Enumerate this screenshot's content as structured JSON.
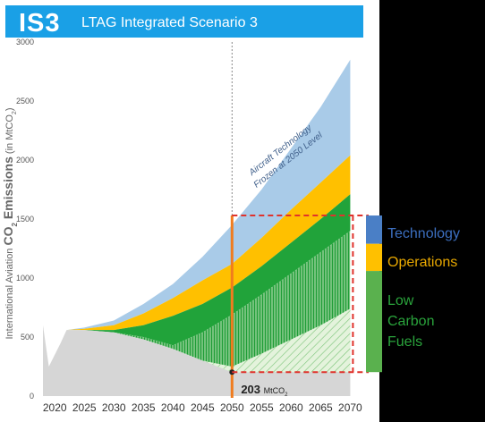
{
  "header": {
    "code": "IS3",
    "title": "LTAG Integrated Scenario 3"
  },
  "colors": {
    "baseline": "#a9cbe8",
    "technology": "#4a7fc6",
    "operations": "#ffc000",
    "fuels": "#21a33a",
    "residual": "#d6d6d6",
    "marker_line": "#f07c1e",
    "dashed": "#e0322c",
    "title_bar": "#1aa0e6"
  },
  "chart_data": {
    "type": "area",
    "title": "LTAG Integrated Scenario 3",
    "ylabel": "International Aviation CO2 Emissions (in MtCO2)",
    "ylabel_parts": {
      "pre": "International Aviation ",
      "bold": "CO",
      "sub": "2",
      "bold2": " Emissions",
      "post": " (in MtCO",
      "sub2": "2",
      "post2": ")"
    },
    "xlabel": "",
    "x": [
      2018,
      2019,
      2020,
      2021,
      2022,
      2025,
      2030,
      2035,
      2040,
      2045,
      2050,
      2055,
      2060,
      2065,
      2070
    ],
    "xticks": [
      2020,
      2025,
      2030,
      2035,
      2040,
      2045,
      2050,
      2055,
      2060,
      2065,
      2070
    ],
    "ylim": [
      0,
      3000
    ],
    "yticks": [
      0,
      500,
      1000,
      1500,
      2000,
      2500,
      3000
    ],
    "series": [
      {
        "name": "",
        "key": "baseline",
        "values": [
          600,
          250,
          350,
          450,
          560,
          580,
          640,
          780,
          950,
          1180,
          1450,
          1750,
          2100,
          2450,
          2850
        ]
      },
      {
        "name": "",
        "key": "operations",
        "values": [
          600,
          250,
          350,
          450,
          560,
          570,
          600,
          700,
          830,
          980,
          1120,
          1340,
          1580,
          1810,
          2040
        ]
      },
      {
        "name": "",
        "key": "fuels",
        "values": [
          600,
          250,
          350,
          450,
          560,
          560,
          560,
          600,
          680,
          780,
          920,
          1100,
          1300,
          1500,
          1710
        ]
      },
      {
        "name": "",
        "key": "residual",
        "values": [
          600,
          250,
          350,
          450,
          560,
          560,
          540,
          480,
          400,
          300,
          200,
          203,
          203,
          203,
          203
        ]
      }
    ],
    "annotations": {
      "frozen": "Aircraft Technology Frozen at 2050 Level",
      "residual_value": "203",
      "residual_unit": "MtCO",
      "residual_unit_sub": "2"
    },
    "legend": {
      "technology": "Technology",
      "operations": "Operations",
      "fuels_line1": "Low",
      "fuels_line2": "Carbon",
      "fuels_line3": "Fuels"
    }
  }
}
